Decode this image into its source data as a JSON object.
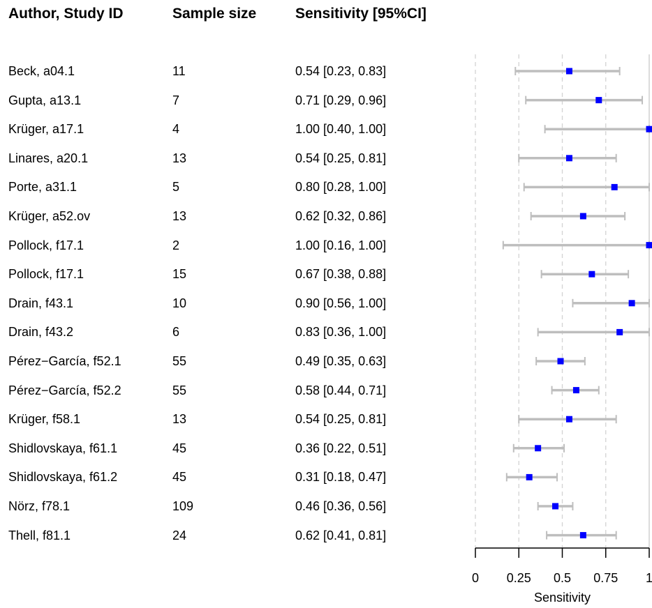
{
  "headers": {
    "study": "Author, Study ID",
    "n": "Sample size",
    "sens": "Sensitivity [95%CI]"
  },
  "rows": [
    {
      "study": "Beck, a04.1",
      "n": "11",
      "ci_text": "0.54 [0.23, 0.83]"
    },
    {
      "study": "Gupta, a13.1",
      "n": "7",
      "ci_text": "0.71 [0.29, 0.96]"
    },
    {
      "study": "Krüger, a17.1",
      "n": "4",
      "ci_text": "1.00 [0.40, 1.00]"
    },
    {
      "study": "Linares, a20.1",
      "n": "13",
      "ci_text": "0.54 [0.25, 0.81]"
    },
    {
      "study": "Porte, a31.1",
      "n": "5",
      "ci_text": "0.80 [0.28, 1.00]"
    },
    {
      "study": "Krüger, a52.ov",
      "n": "13",
      "ci_text": "0.62 [0.32, 0.86]"
    },
    {
      "study": "Pollock, f17.1",
      "n": "2",
      "ci_text": "1.00 [0.16, 1.00]"
    },
    {
      "study": "Pollock, f17.1",
      "n": "15",
      "ci_text": "0.67 [0.38, 0.88]"
    },
    {
      "study": "Drain, f43.1",
      "n": "10",
      "ci_text": "0.90 [0.56, 1.00]"
    },
    {
      "study": "Drain, f43.2",
      "n": "6",
      "ci_text": "0.83 [0.36, 1.00]"
    },
    {
      "study": "Pérez−García, f52.1",
      "n": "55",
      "ci_text": "0.49 [0.35, 0.63]"
    },
    {
      "study": "Pérez−García, f52.2",
      "n": "55",
      "ci_text": "0.58 [0.44, 0.71]"
    },
    {
      "study": "Krüger, f58.1",
      "n": "13",
      "ci_text": "0.54 [0.25, 0.81]"
    },
    {
      "study": "Shidlovskaya, f61.1",
      "n": "45",
      "ci_text": "0.36 [0.22, 0.51]"
    },
    {
      "study": "Shidlovskaya, f61.2",
      "n": "45",
      "ci_text": "0.31 [0.18, 0.47]"
    },
    {
      "study": "Nörz, f78.1",
      "n": "109",
      "ci_text": "0.46 [0.36, 0.56]"
    },
    {
      "study": "Thell, f81.1",
      "n": "24",
      "ci_text": "0.62 [0.41, 0.81]"
    }
  ],
  "chart_data": {
    "type": "forest",
    "xlabel": "Sensitivity",
    "xlim": [
      0,
      1
    ],
    "xticks": [
      0,
      0.25,
      0.5,
      0.75,
      1
    ],
    "xtick_labels": [
      "0",
      "0.25",
      "0.5",
      "0.75",
      "1"
    ],
    "reference_lines": [
      0,
      0.25,
      0.5,
      0.75
    ],
    "solid_reference_line": 1,
    "colors": {
      "point": "#0000ff",
      "ci": "#bebebe",
      "grid": "#d3d3d3",
      "axis": "#000000"
    },
    "studies": [
      {
        "label": "Beck, a04.1",
        "estimate": 0.54,
        "lower": 0.23,
        "upper": 0.83
      },
      {
        "label": "Gupta, a13.1",
        "estimate": 0.71,
        "lower": 0.29,
        "upper": 0.96
      },
      {
        "label": "Krüger, a17.1",
        "estimate": 1.0,
        "lower": 0.4,
        "upper": 1.0
      },
      {
        "label": "Linares, a20.1",
        "estimate": 0.54,
        "lower": 0.25,
        "upper": 0.81
      },
      {
        "label": "Porte, a31.1",
        "estimate": 0.8,
        "lower": 0.28,
        "upper": 1.0
      },
      {
        "label": "Krüger, a52.ov",
        "estimate": 0.62,
        "lower": 0.32,
        "upper": 0.86
      },
      {
        "label": "Pollock, f17.1",
        "estimate": 1.0,
        "lower": 0.16,
        "upper": 1.0
      },
      {
        "label": "Pollock, f17.1",
        "estimate": 0.67,
        "lower": 0.38,
        "upper": 0.88
      },
      {
        "label": "Drain, f43.1",
        "estimate": 0.9,
        "lower": 0.56,
        "upper": 1.0
      },
      {
        "label": "Drain, f43.2",
        "estimate": 0.83,
        "lower": 0.36,
        "upper": 1.0
      },
      {
        "label": "Pérez−García, f52.1",
        "estimate": 0.49,
        "lower": 0.35,
        "upper": 0.63
      },
      {
        "label": "Pérez−García, f52.2",
        "estimate": 0.58,
        "lower": 0.44,
        "upper": 0.71
      },
      {
        "label": "Krüger, f58.1",
        "estimate": 0.54,
        "lower": 0.25,
        "upper": 0.81
      },
      {
        "label": "Shidlovskaya, f61.1",
        "estimate": 0.36,
        "lower": 0.22,
        "upper": 0.51
      },
      {
        "label": "Shidlovskaya, f61.2",
        "estimate": 0.31,
        "lower": 0.18,
        "upper": 0.47
      },
      {
        "label": "Nörz, f78.1",
        "estimate": 0.46,
        "lower": 0.36,
        "upper": 0.56
      },
      {
        "label": "Thell, f81.1",
        "estimate": 0.62,
        "lower": 0.41,
        "upper": 0.81
      }
    ]
  }
}
